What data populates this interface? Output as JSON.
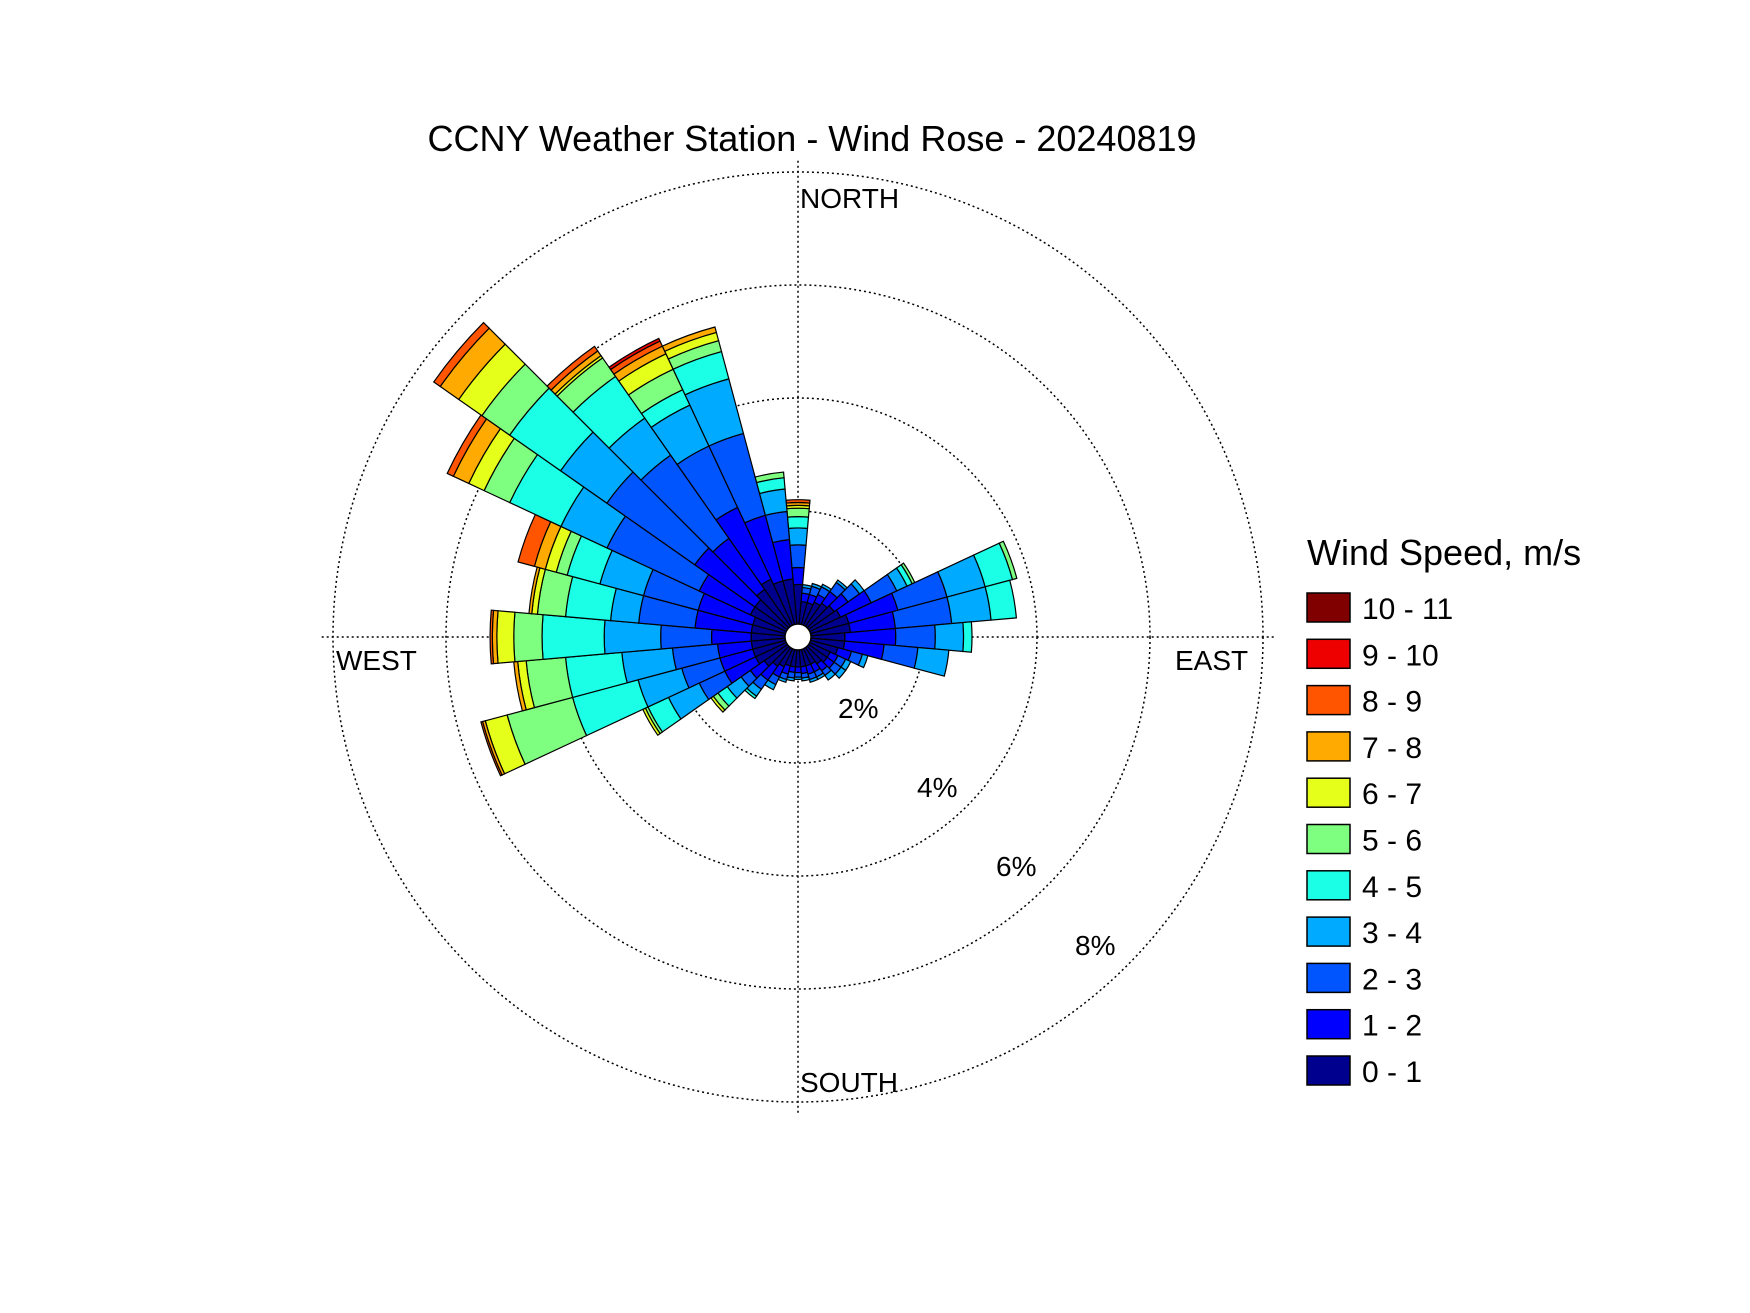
{
  "chart_data": {
    "type": "wind-rose",
    "title": "CCNY Weather Station - Wind Rose - 20240819",
    "direction_labels": {
      "north": "NORTH",
      "south": "SOUTH",
      "east": "EAST",
      "west": "WEST"
    },
    "ring_values": [
      2,
      4,
      6,
      8
    ],
    "ring_labels": [
      "2%",
      "4%",
      "6%",
      "8%"
    ],
    "radial_unit": "%",
    "legend": {
      "title": "Wind Speed, m/s",
      "bins": [
        {
          "label": "10 - 11",
          "color": "#800000"
        },
        {
          "label": "9 - 10",
          "color": "#ee0000"
        },
        {
          "label": "8 - 9",
          "color": "#ff5500"
        },
        {
          "label": "7 - 8",
          "color": "#ffaa00"
        },
        {
          "label": "6 - 7",
          "color": "#e5ff1a"
        },
        {
          "label": "5 - 6",
          "color": "#7fff7f"
        },
        {
          "label": "4 - 5",
          "color": "#1affe5"
        },
        {
          "label": "3 - 4",
          "color": "#00aaff"
        },
        {
          "label": "2 - 3",
          "color": "#0055ff"
        },
        {
          "label": "1 - 2",
          "color": "#0000ff"
        },
        {
          "label": "0 - 1",
          "color": "#00008f"
        }
      ]
    },
    "bin_color_order_low_to_high": [
      "#00008f",
      "#0000ff",
      "#0055ff",
      "#00aaff",
      "#1affe5",
      "#7fff7f",
      "#e5ff1a",
      "#ffaa00",
      "#ff5500",
      "#ee0000",
      "#800000"
    ],
    "sector_width_deg": 10,
    "sectors": [
      {
        "dir_deg": 0,
        "cum": [
          0.7,
          1.0,
          1.4,
          1.7,
          1.9,
          2.05,
          2.1,
          2.15,
          2.2
        ]
      },
      {
        "dir_deg": 10,
        "cum": [
          0.4,
          0.55,
          0.65,
          0.7
        ]
      },
      {
        "dir_deg": 20,
        "cum": [
          0.4,
          0.55,
          0.7,
          0.75
        ]
      },
      {
        "dir_deg": 30,
        "cum": [
          0.45,
          0.6,
          0.75,
          0.8
        ]
      },
      {
        "dir_deg": 40,
        "cum": [
          0.5,
          0.75,
          0.95,
          1.0
        ]
      },
      {
        "dir_deg": 50,
        "cum": [
          0.55,
          0.85,
          1.1,
          1.2
        ]
      },
      {
        "dir_deg": 60,
        "cum": [
          0.6,
          1.2,
          1.7,
          1.9,
          2.0,
          2.05
        ]
      },
      {
        "dir_deg": 70,
        "cum": [
          0.7,
          1.6,
          2.5,
          3.2,
          3.7,
          3.78
        ]
      },
      {
        "dir_deg": 80,
        "cum": [
          0.7,
          1.5,
          2.5,
          3.2,
          3.65
        ]
      },
      {
        "dir_deg": 90,
        "cum": [
          0.6,
          1.5,
          2.2,
          2.7,
          2.85
        ]
      },
      {
        "dir_deg": 100,
        "cum": [
          0.6,
          1.3,
          1.9,
          2.45
        ]
      },
      {
        "dir_deg": 110,
        "cum": [
          0.5,
          0.75,
          0.95,
          1.05
        ]
      },
      {
        "dir_deg": 120,
        "cum": [
          0.4,
          0.55,
          0.7,
          0.8
        ]
      },
      {
        "dir_deg": 130,
        "cum": [
          0.4,
          0.55,
          0.7,
          0.8
        ]
      },
      {
        "dir_deg": 140,
        "cum": [
          0.35,
          0.5,
          0.6,
          0.7
        ]
      },
      {
        "dir_deg": 150,
        "cum": [
          0.3,
          0.45,
          0.55,
          0.6
        ]
      },
      {
        "dir_deg": 160,
        "cum": [
          0.3,
          0.45,
          0.55,
          0.6
        ]
      },
      {
        "dir_deg": 170,
        "cum": [
          0.3,
          0.42,
          0.5,
          0.55
        ]
      },
      {
        "dir_deg": 180,
        "cum": [
          0.3,
          0.4,
          0.48,
          0.52
        ]
      },
      {
        "dir_deg": 190,
        "cum": [
          0.3,
          0.4,
          0.5,
          0.55
        ]
      },
      {
        "dir_deg": 200,
        "cum": [
          0.3,
          0.45,
          0.55,
          0.6
        ]
      },
      {
        "dir_deg": 210,
        "cum": [
          0.35,
          0.55,
          0.7,
          0.8
        ]
      },
      {
        "dir_deg": 220,
        "cum": [
          0.4,
          0.7,
          0.9,
          1.05,
          1.1
        ]
      },
      {
        "dir_deg": 230,
        "cum": [
          0.5,
          0.8,
          1.0,
          1.3,
          1.5,
          1.6,
          1.65
        ]
      },
      {
        "dir_deg": 240,
        "cum": [
          0.6,
          1.2,
          1.7,
          2.3,
          2.7,
          2.75,
          2.8
        ]
      },
      {
        "dir_deg": 250,
        "cum": [
          0.6,
          1.2,
          1.9,
          2.7,
          3.9,
          5.1,
          5.5,
          5.55,
          5.58
        ]
      },
      {
        "dir_deg": 260,
        "cum": [
          0.6,
          1.2,
          2.0,
          2.9,
          3.9,
          4.6,
          4.75,
          4.82
        ]
      },
      {
        "dir_deg": 270,
        "cum": [
          0.6,
          1.3,
          2.2,
          3.2,
          4.3,
          4.8,
          5.1,
          5.18,
          5.22
        ]
      },
      {
        "dir_deg": 280,
        "cum": [
          0.6,
          1.6,
          2.6,
          3.1,
          3.9,
          4.4,
          4.5,
          4.55
        ]
      },
      {
        "dir_deg": 290,
        "cum": [
          0.6,
          1.6,
          2.6,
          3.4,
          4.0,
          4.2,
          4.4,
          4.6,
          4.9
        ]
      },
      {
        "dir_deg": 300,
        "cum": [
          0.7,
          1.7,
          3.5,
          4.4,
          5.4,
          5.9,
          6.2,
          6.5,
          6.62
        ]
      },
      {
        "dir_deg": 310,
        "cum": [
          0.7,
          2.0,
          3.9,
          4.9,
          6.0,
          6.6,
          7.1,
          7.5,
          7.64
        ]
      },
      {
        "dir_deg": 320,
        "cum": [
          0.8,
          1.9,
          3.7,
          4.5,
          5.4,
          5.8,
          5.85,
          5.95,
          6.05
        ]
      },
      {
        "dir_deg": 330,
        "cum": [
          0.9,
          2.3,
          3.5,
          4.3,
          4.6,
          5.0,
          5.3,
          5.45,
          5.55,
          5.6
        ]
      },
      {
        "dir_deg": 340,
        "cum": [
          0.8,
          2.0,
          3.5,
          4.5,
          5.0,
          5.2,
          5.35,
          5.45
        ]
      },
      {
        "dir_deg": 350,
        "cum": [
          0.8,
          1.5,
          2.0,
          2.4,
          2.6,
          2.7
        ]
      }
    ]
  }
}
